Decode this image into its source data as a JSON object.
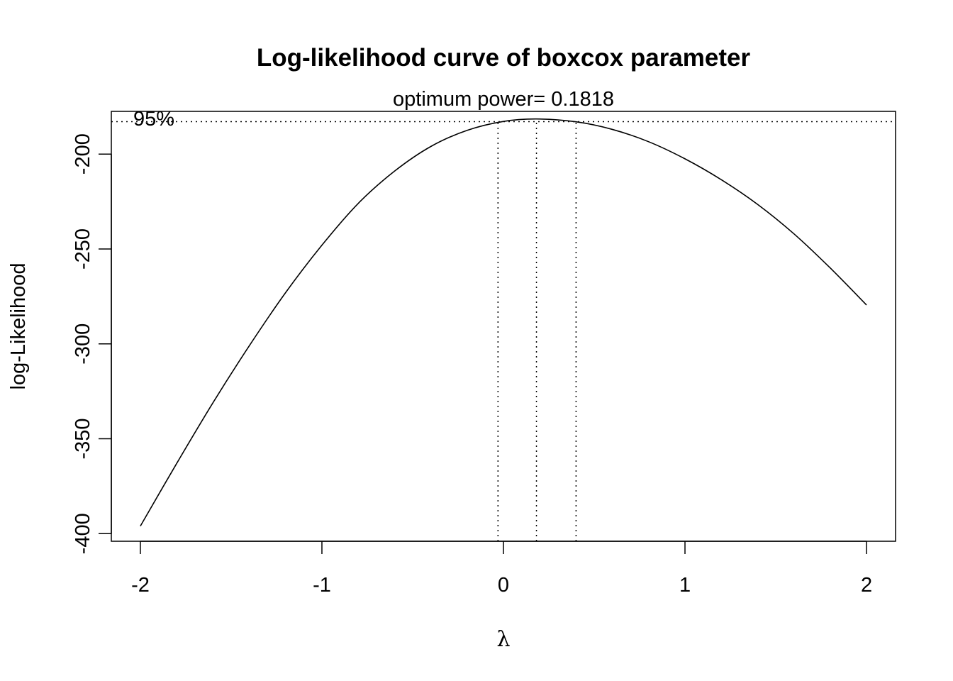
{
  "chart_data": {
    "type": "line",
    "title": "Log-likelihood curve of boxcox parameter",
    "subtitle": "optimum power= 0.1818",
    "xlabel": "λ",
    "ylabel": "log-Likelihood",
    "xlim": [
      -2.16,
      2.16
    ],
    "ylim": [
      -404,
      -177.5
    ],
    "x_ticks": [
      -2,
      -1,
      0,
      1,
      2
    ],
    "x_tick_labels": [
      "-2",
      "-1",
      "0",
      "1",
      "2"
    ],
    "y_ticks": [
      -400,
      -350,
      -300,
      -250,
      -200
    ],
    "y_tick_labels": [
      "-400",
      "-350",
      "-300",
      "-250",
      "-200"
    ],
    "grid": false,
    "series": [
      {
        "x": [
          -2,
          -1.8,
          -1.6,
          -1.4,
          -1.2,
          -1,
          -0.8,
          -0.6,
          -0.4,
          -0.2,
          0,
          0.1818,
          0.4,
          0.6,
          0.8,
          1,
          1.2,
          1.4,
          1.6,
          1.8,
          2
        ],
        "y": [
          -396,
          -363,
          -331,
          -301,
          -273,
          -248,
          -226,
          -209,
          -196,
          -187.5,
          -182.8,
          -181.5,
          -183,
          -187,
          -193.5,
          -202.5,
          -213.5,
          -226.5,
          -242,
          -260,
          -279.5
        ]
      }
    ],
    "ci_level_label": "95%",
    "ci_threshold": -182.9,
    "ci_lambda": [
      -0.03,
      0.1818,
      0.4
    ],
    "line_color": "#000000"
  }
}
